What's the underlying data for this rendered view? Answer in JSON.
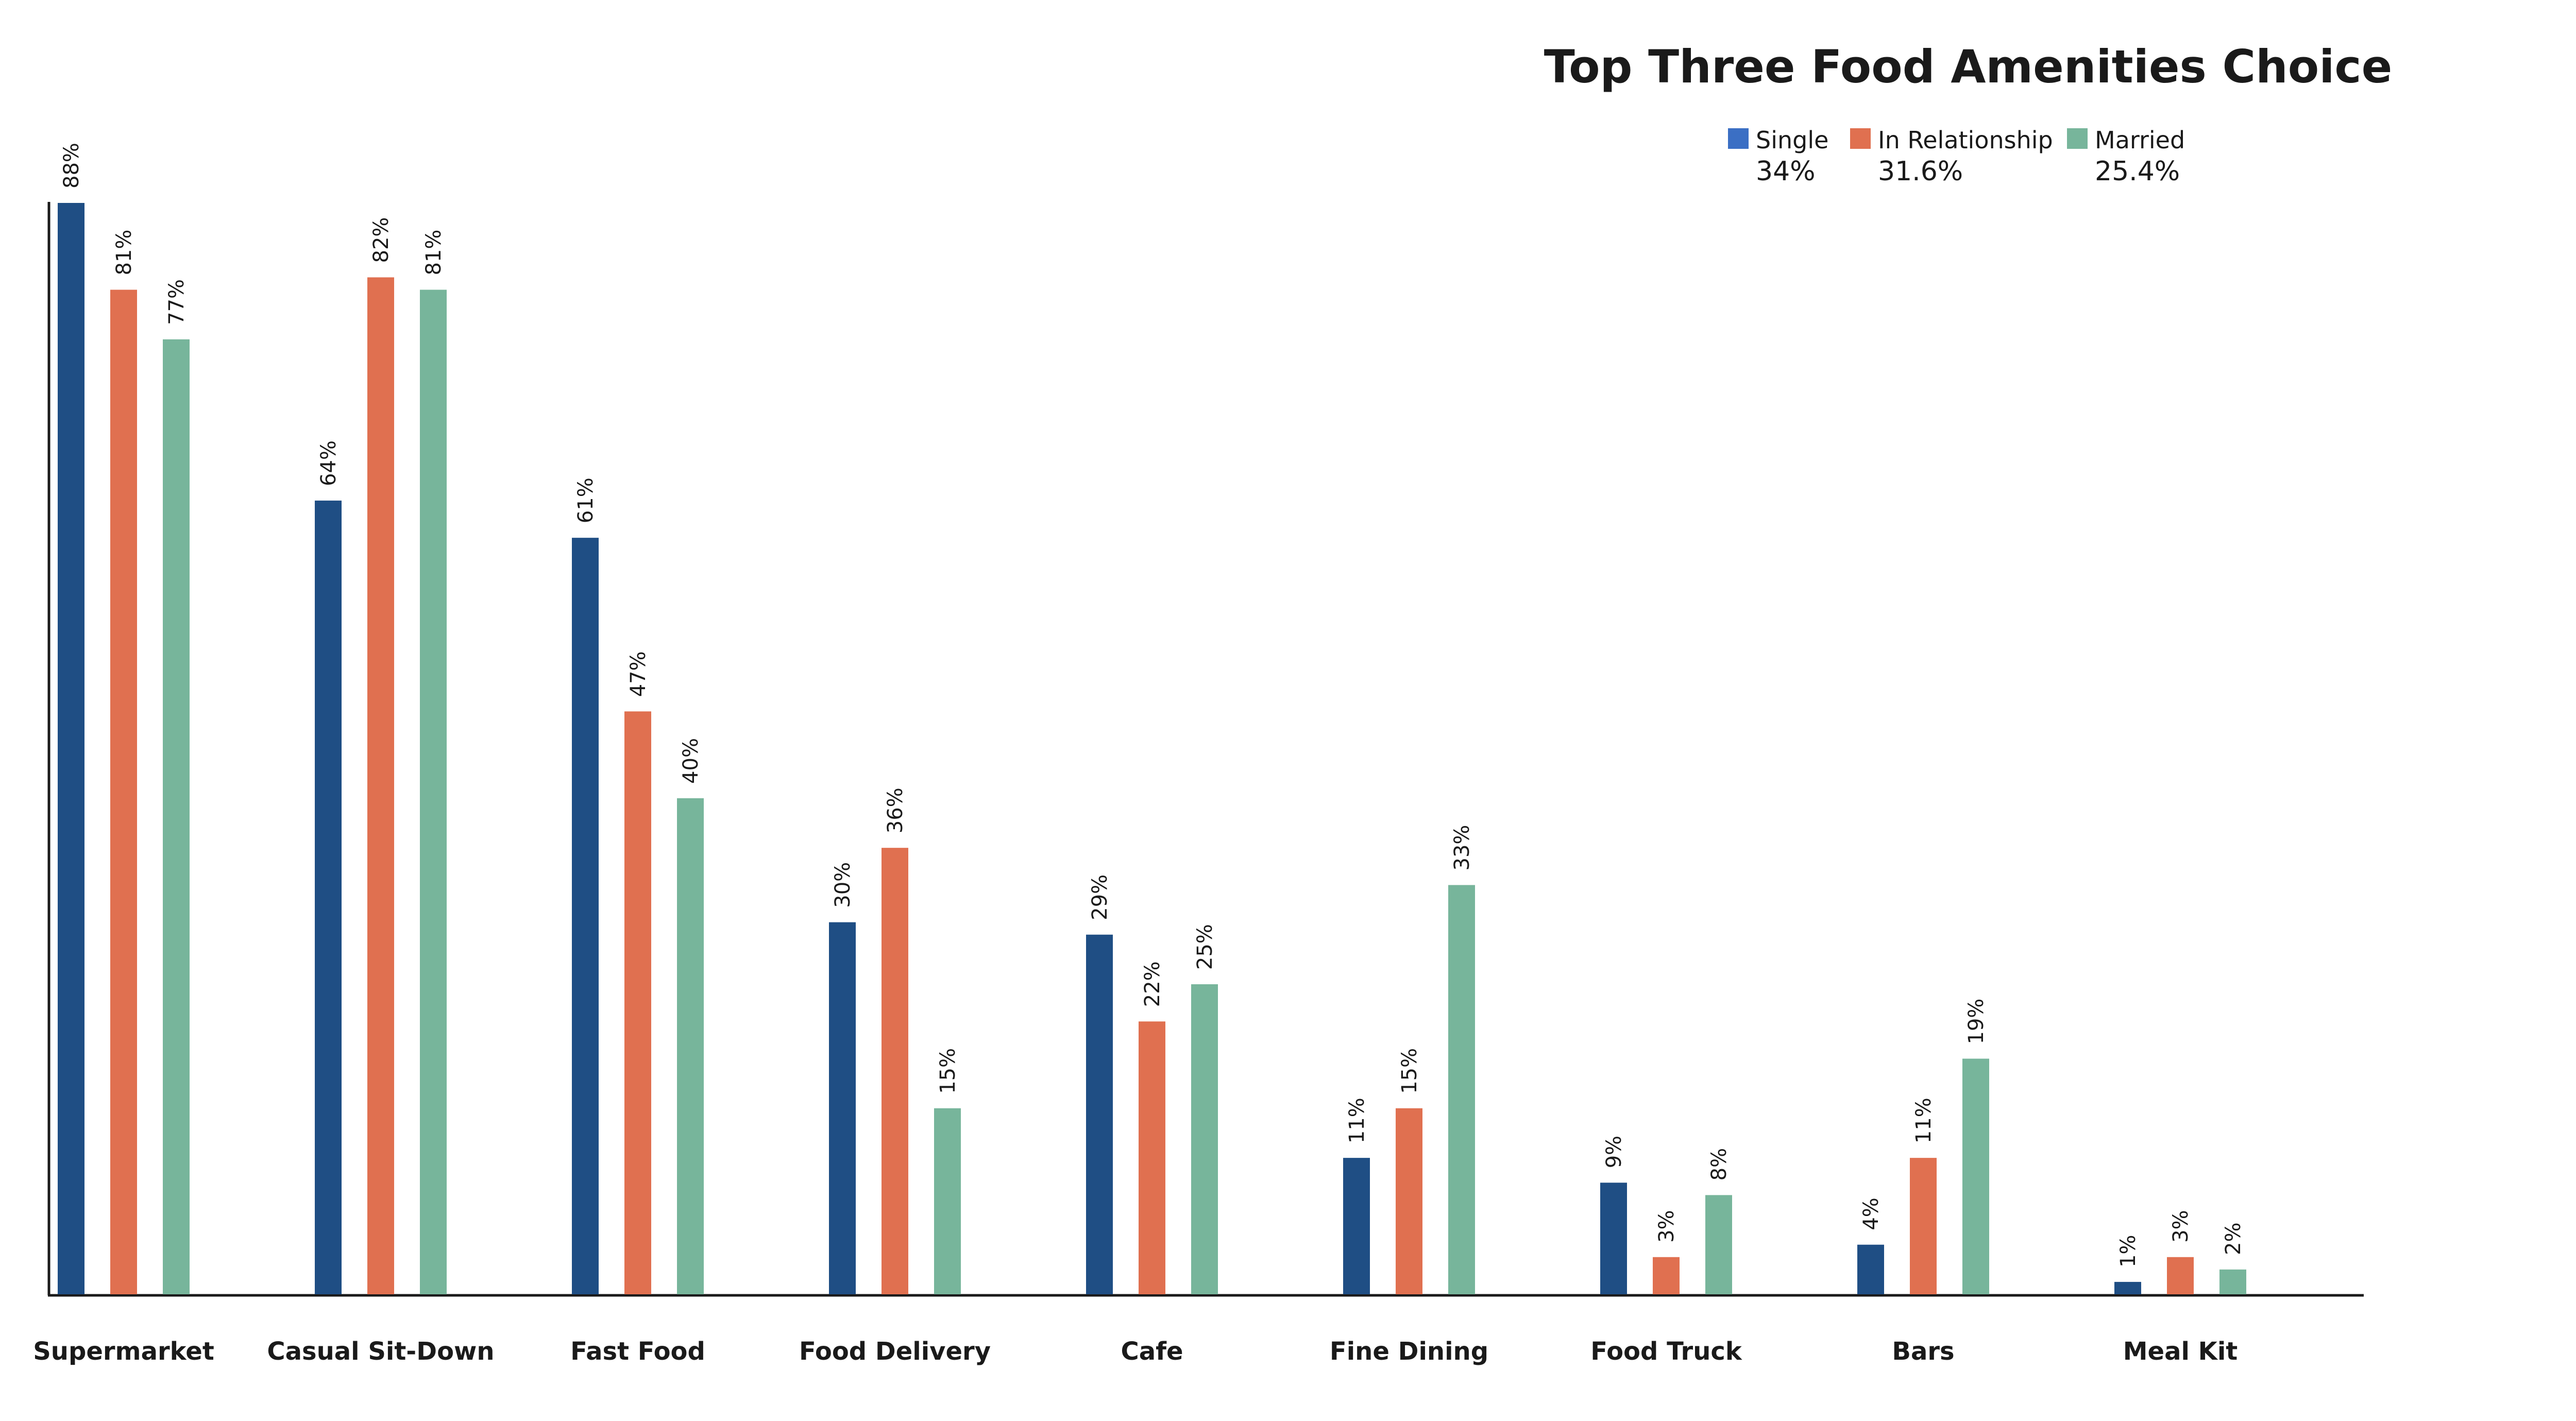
{
  "chart_data": {
    "type": "bar",
    "title": "Top Three Food Amenities Choice",
    "xlabel": "",
    "ylabel": "",
    "ylim": [
      0,
      88
    ],
    "grid": false,
    "legend_position": "top-right",
    "categories": [
      "Supermarket",
      "Casual Sit-Down",
      "Fast Food",
      "Food Delivery",
      "Cafe",
      "Fine Dining",
      "Food Truck",
      "Bars",
      "Meal Kit"
    ],
    "series": [
      {
        "name": "Single",
        "summary": "34%",
        "color": "#1f4e84",
        "legend_color": "#3b6fc4",
        "values": [
          88,
          64,
          61,
          30,
          29,
          11,
          9,
          4,
          1
        ],
        "labels": [
          "88%",
          "64%",
          "61%",
          "30%",
          "29%",
          "11%",
          "9%",
          "4%",
          "1%"
        ]
      },
      {
        "name": "In Relationship",
        "summary": "31.6%",
        "color": "#e07050",
        "legend_color": "#e07050",
        "values": [
          81,
          82,
          47,
          36,
          22,
          15,
          3,
          11,
          3
        ],
        "labels": [
          "81%",
          "82%",
          "47%",
          "36%",
          "22%",
          "15%",
          "3%",
          "11%",
          "3%"
        ]
      },
      {
        "name": "Married",
        "summary": "25.4%",
        "color": "#77b59b",
        "legend_color": "#77b59b",
        "values": [
          77,
          81,
          40,
          15,
          25,
          33,
          8,
          19,
          2
        ],
        "labels": [
          "77%",
          "81%",
          "40%",
          "15%",
          "25%",
          "33%",
          "8%",
          "19%",
          "2%"
        ]
      }
    ]
  }
}
